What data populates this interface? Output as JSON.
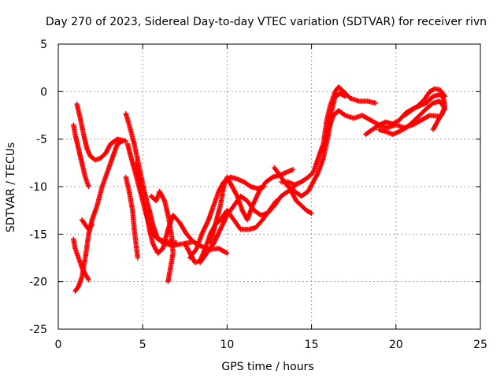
{
  "chart_data": {
    "type": "scatter",
    "title": "Day 270 of 2023, Sidereal Day-to-day VTEC variation (SDTVAR) for receiver rivn",
    "xlabel": "GPS time / hours",
    "ylabel": "SDTVAR / TECUs",
    "xlim": [
      0,
      25
    ],
    "ylim": [
      -25,
      5
    ],
    "xticks": [
      "0",
      "5",
      "10",
      "15",
      "20",
      "25"
    ],
    "yticks": [
      "5",
      "0",
      "-5",
      "-10",
      "-15",
      "-20",
      "-25"
    ],
    "grid": true,
    "marker": "plus",
    "color": "#ff0000",
    "series": [
      {
        "name": "s1",
        "points": [
          [
            0.9,
            -3.5
          ],
          [
            1.0,
            -4.5
          ],
          [
            1.2,
            -6
          ],
          [
            1.4,
            -7.5
          ],
          [
            1.6,
            -9
          ],
          [
            1.8,
            -10
          ]
        ]
      },
      {
        "name": "s2",
        "points": [
          [
            1.1,
            -1.3
          ],
          [
            1.3,
            -2.8
          ],
          [
            1.5,
            -4.5
          ],
          [
            1.7,
            -6
          ],
          [
            1.9,
            -6.8
          ],
          [
            2.2,
            -7.2
          ],
          [
            2.5,
            -7
          ],
          [
            2.8,
            -6.5
          ],
          [
            3.1,
            -5.5
          ],
          [
            3.5,
            -5
          ],
          [
            4.0,
            -5.2
          ]
        ]
      },
      {
        "name": "s3",
        "points": [
          [
            0.9,
            -15.5
          ],
          [
            1.0,
            -16.5
          ],
          [
            1.2,
            -17.5
          ],
          [
            1.4,
            -18.5
          ],
          [
            1.6,
            -19.2
          ],
          [
            1.8,
            -19.8
          ]
        ]
      },
      {
        "name": "s4",
        "points": [
          [
            1.0,
            -21
          ],
          [
            1.2,
            -20.5
          ],
          [
            1.4,
            -19.5
          ],
          [
            1.6,
            -17.5
          ],
          [
            1.8,
            -15
          ],
          [
            2.0,
            -13.5
          ],
          [
            2.3,
            -12
          ],
          [
            2.6,
            -10
          ],
          [
            2.9,
            -8.5
          ],
          [
            3.2,
            -7
          ],
          [
            3.5,
            -5.5
          ],
          [
            3.8,
            -5.2
          ]
        ]
      },
      {
        "name": "s5",
        "points": [
          [
            1.4,
            -13.5
          ],
          [
            1.6,
            -14
          ],
          [
            1.8,
            -14.5
          ],
          [
            2.0,
            -14
          ]
        ]
      },
      {
        "name": "s6",
        "points": [
          [
            4.0,
            -2.3
          ],
          [
            4.2,
            -3.5
          ],
          [
            4.5,
            -5.5
          ],
          [
            4.8,
            -8
          ],
          [
            5.1,
            -10.5
          ],
          [
            5.4,
            -12.5
          ],
          [
            5.6,
            -14
          ],
          [
            5.9,
            -15.5
          ],
          [
            6.3,
            -16
          ],
          [
            6.8,
            -16.2
          ],
          [
            7.4,
            -16
          ],
          [
            8.0,
            -15.8
          ],
          [
            8.5,
            -16.3
          ],
          [
            9.0,
            -16.6
          ],
          [
            9.5,
            -16.5
          ],
          [
            10.0,
            -17
          ]
        ]
      },
      {
        "name": "s7",
        "points": [
          [
            4.1,
            -5.5
          ],
          [
            4.4,
            -7.5
          ],
          [
            4.7,
            -9.5
          ],
          [
            5.0,
            -11.5
          ],
          [
            5.3,
            -13.5
          ],
          [
            5.6,
            -15
          ],
          [
            5.9,
            -15.5
          ],
          [
            6.4,
            -15.8
          ],
          [
            7.0,
            -15.9
          ]
        ]
      },
      {
        "name": "s8",
        "points": [
          [
            4.0,
            -9
          ],
          [
            4.2,
            -10.5
          ],
          [
            4.4,
            -12.5
          ],
          [
            4.5,
            -14.5
          ],
          [
            4.6,
            -16
          ],
          [
            4.7,
            -17.5
          ]
        ]
      },
      {
        "name": "s9",
        "points": [
          [
            4.6,
            -7.5
          ],
          [
            4.8,
            -9.5
          ],
          [
            5.0,
            -11
          ],
          [
            5.2,
            -12.5
          ],
          [
            5.4,
            -14.5
          ],
          [
            5.6,
            -16
          ],
          [
            5.9,
            -17
          ],
          [
            6.2,
            -16.5
          ],
          [
            6.5,
            -14.5
          ],
          [
            6.8,
            -13
          ],
          [
            7.2,
            -13.8
          ],
          [
            7.6,
            -15
          ],
          [
            8.0,
            -15.8
          ]
        ]
      },
      {
        "name": "s10",
        "points": [
          [
            5.5,
            -11
          ],
          [
            5.8,
            -11.5
          ],
          [
            6.0,
            -10.5
          ],
          [
            6.3,
            -11.5
          ],
          [
            6.5,
            -13
          ],
          [
            6.7,
            -15
          ],
          [
            6.8,
            -17
          ],
          [
            6.6,
            -19
          ],
          [
            6.5,
            -20
          ]
        ]
      },
      {
        "name": "s11",
        "points": [
          [
            7.5,
            -16
          ],
          [
            7.8,
            -17
          ],
          [
            8.1,
            -18
          ],
          [
            8.4,
            -17.8
          ],
          [
            8.7,
            -16.5
          ],
          [
            9.0,
            -15
          ],
          [
            9.3,
            -14
          ],
          [
            9.6,
            -13.5
          ],
          [
            10.0,
            -12.5
          ],
          [
            10.4,
            -13.5
          ],
          [
            10.8,
            -14.5
          ],
          [
            11.3,
            -14.5
          ],
          [
            11.7,
            -14.3
          ],
          [
            12.1,
            -13.5
          ],
          [
            12.5,
            -12.5
          ],
          [
            12.9,
            -11.5
          ]
        ]
      },
      {
        "name": "s12",
        "points": [
          [
            7.8,
            -17.5
          ],
          [
            8.2,
            -16.5
          ],
          [
            8.5,
            -15
          ],
          [
            8.9,
            -13.5
          ],
          [
            9.2,
            -12
          ],
          [
            9.5,
            -10.5
          ],
          [
            9.8,
            -9.5
          ],
          [
            10.2,
            -9
          ],
          [
            10.6,
            -9.2
          ],
          [
            11.0,
            -9.5
          ],
          [
            11.4,
            -10
          ],
          [
            11.8,
            -10.2
          ],
          [
            12.2,
            -10
          ]
        ]
      },
      {
        "name": "s13",
        "points": [
          [
            8.4,
            -18
          ],
          [
            8.8,
            -17
          ],
          [
            9.2,
            -16
          ],
          [
            9.6,
            -14.5
          ],
          [
            10.0,
            -13
          ],
          [
            10.4,
            -12
          ],
          [
            10.8,
            -11
          ],
          [
            11.2,
            -11.5
          ],
          [
            11.6,
            -12.5
          ],
          [
            12.0,
            -13
          ],
          [
            12.4,
            -12.8
          ],
          [
            12.8,
            -12
          ],
          [
            13.2,
            -11
          ],
          [
            13.6,
            -10.5
          ],
          [
            14.0,
            -10
          ]
        ]
      },
      {
        "name": "s14",
        "points": [
          [
            9.0,
            -16
          ],
          [
            9.3,
            -14
          ],
          [
            9.6,
            -12
          ],
          [
            9.8,
            -10
          ],
          [
            10.0,
            -9
          ],
          [
            10.3,
            -10
          ],
          [
            10.6,
            -11
          ],
          [
            10.9,
            -12.5
          ],
          [
            11.2,
            -13.5
          ],
          [
            11.5,
            -12
          ],
          [
            11.9,
            -10.5
          ],
          [
            12.3,
            -9.5
          ],
          [
            12.7,
            -9
          ],
          [
            13.1,
            -8.8
          ],
          [
            13.5,
            -8.5
          ],
          [
            13.9,
            -8.2
          ]
        ]
      },
      {
        "name": "s15",
        "points": [
          [
            12.8,
            -8
          ],
          [
            13.2,
            -9
          ],
          [
            13.6,
            -10
          ],
          [
            14.0,
            -10.5
          ],
          [
            14.4,
            -11
          ],
          [
            14.8,
            -10.5
          ],
          [
            15.1,
            -9.5
          ],
          [
            15.4,
            -8.5
          ],
          [
            15.7,
            -7
          ],
          [
            16.0,
            -4.5
          ],
          [
            16.2,
            -2
          ],
          [
            16.4,
            -0.5
          ],
          [
            16.7,
            -0.2
          ],
          [
            17.0,
            -0.5
          ]
        ]
      },
      {
        "name": "s16",
        "points": [
          [
            13.2,
            -9.5
          ],
          [
            13.6,
            -9.5
          ],
          [
            14.0,
            -9.8
          ],
          [
            14.4,
            -9.5
          ],
          [
            14.8,
            -9
          ],
          [
            15.1,
            -8.5
          ],
          [
            15.4,
            -7
          ],
          [
            15.7,
            -5.5
          ],
          [
            15.9,
            -3
          ],
          [
            16.1,
            -1.5
          ],
          [
            16.4,
            0
          ],
          [
            16.6,
            0.5
          ],
          [
            16.9,
            0
          ],
          [
            17.3,
            -0.7
          ],
          [
            17.8,
            -1
          ],
          [
            18.3,
            -1
          ],
          [
            18.8,
            -1.2
          ]
        ]
      },
      {
        "name": "s17",
        "points": [
          [
            13.8,
            -10.5
          ],
          [
            14.1,
            -11.5
          ],
          [
            14.4,
            -12
          ],
          [
            14.7,
            -12.5
          ],
          [
            15.0,
            -12.8
          ]
        ]
      },
      {
        "name": "s18",
        "points": [
          [
            15.5,
            -6.5
          ],
          [
            15.8,
            -5.5
          ],
          [
            16.0,
            -4
          ],
          [
            16.3,
            -2.5
          ],
          [
            16.6,
            -2
          ],
          [
            17.0,
            -2.5
          ],
          [
            17.5,
            -2.8
          ],
          [
            18.0,
            -2.5
          ],
          [
            18.5,
            -3
          ],
          [
            19.0,
            -3.5
          ],
          [
            19.5,
            -3.8
          ],
          [
            20.0,
            -3.5
          ],
          [
            20.5,
            -3.8
          ],
          [
            21.0,
            -3.5
          ],
          [
            21.5,
            -3
          ],
          [
            22.0,
            -2.5
          ],
          [
            22.6,
            -2.6
          ]
        ]
      },
      {
        "name": "s19",
        "points": [
          [
            18.2,
            -4.5
          ],
          [
            18.6,
            -4
          ],
          [
            19.0,
            -3.5
          ],
          [
            19.4,
            -3.2
          ],
          [
            19.8,
            -3.4
          ],
          [
            20.2,
            -3
          ],
          [
            20.6,
            -2.2
          ],
          [
            21.0,
            -1.8
          ],
          [
            21.4,
            -1.5
          ],
          [
            21.8,
            -1.2
          ],
          [
            22.2,
            -0.5
          ],
          [
            22.6,
            -0.3
          ],
          [
            22.8,
            -0.6
          ],
          [
            22.9,
            -1.5
          ],
          [
            22.7,
            -2.5
          ]
        ]
      },
      {
        "name": "s20",
        "points": [
          [
            19.0,
            -4
          ],
          [
            19.4,
            -4.2
          ],
          [
            19.8,
            -4.5
          ],
          [
            20.2,
            -4.2
          ],
          [
            20.6,
            -3.8
          ],
          [
            21.0,
            -3.2
          ],
          [
            21.4,
            -2.5
          ],
          [
            21.8,
            -1.8
          ],
          [
            22.2,
            -1.2
          ],
          [
            22.6,
            -1
          ],
          [
            22.9,
            -1.8
          ],
          [
            22.5,
            -3
          ],
          [
            22.2,
            -4
          ]
        ]
      },
      {
        "name": "s21",
        "points": [
          [
            20.5,
            -2.5
          ],
          [
            20.9,
            -2
          ],
          [
            21.3,
            -1.5
          ],
          [
            21.7,
            -0.8
          ],
          [
            22.0,
            0
          ],
          [
            22.3,
            0.3
          ],
          [
            22.6,
            0.2
          ],
          [
            22.9,
            -0.5
          ]
        ]
      }
    ]
  }
}
